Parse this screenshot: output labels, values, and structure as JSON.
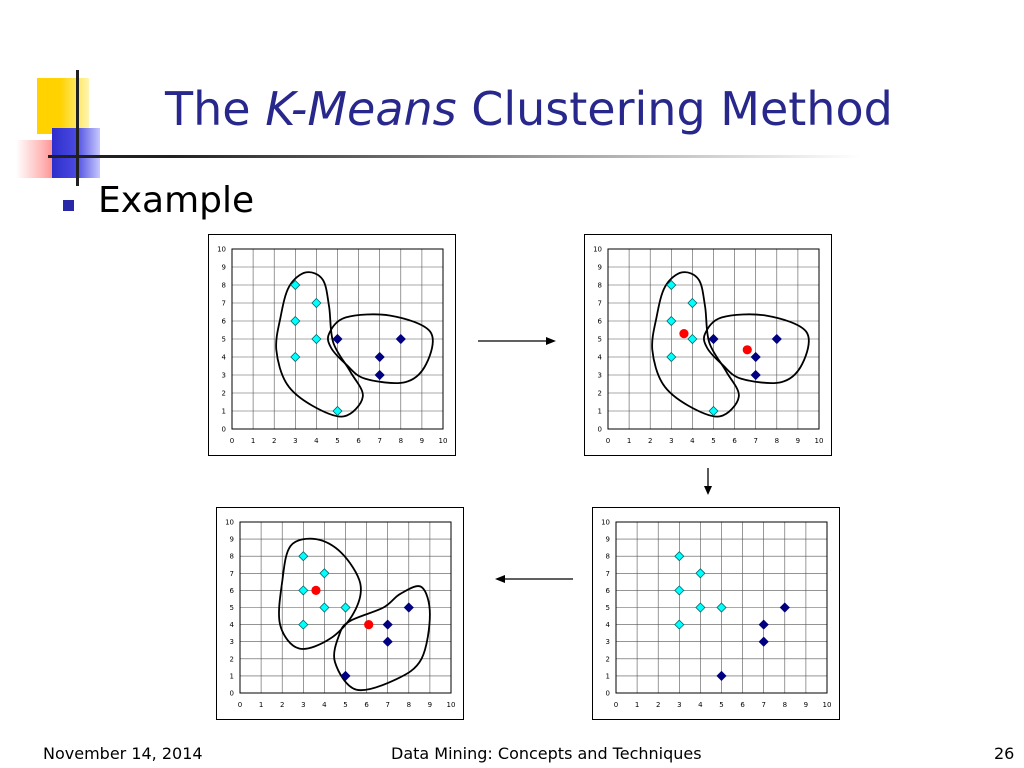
{
  "slide": {
    "title_pre": "The",
    "title_em": "K-Means",
    "title_post": "Clustering Method",
    "bullet": "Example",
    "footer_date": "November 14, 2014",
    "footer_title": "Data Mining: Concepts and Techniques",
    "footer_page": "26"
  },
  "colors": {
    "title": "#28288c",
    "bullet": "#2828a8",
    "cluster_a": "#00ffff",
    "cluster_b": "#000080",
    "centroid": "#ff0000"
  },
  "chart_data": [
    {
      "type": "scatter",
      "position": "top-left",
      "xlim": [
        0,
        10
      ],
      "ylim": [
        0,
        10
      ],
      "x_ticks": [
        "0",
        "1",
        "2",
        "3",
        "4",
        "5",
        "6",
        "7",
        "8",
        "9",
        "10"
      ],
      "y_ticks": [
        "0",
        "1",
        "2",
        "3",
        "4",
        "5",
        "6",
        "7",
        "8",
        "9",
        "10"
      ],
      "grid": true,
      "series": [
        {
          "marker": "cyan-diamond",
          "points": [
            [
              3,
              8
            ],
            [
              4,
              7
            ],
            [
              3,
              6
            ],
            [
              4,
              5
            ],
            [
              3,
              4
            ],
            [
              5,
              1
            ]
          ]
        },
        {
          "marker": "navy-diamond",
          "points": [
            [
              5,
              5
            ],
            [
              8,
              5
            ],
            [
              7,
              4
            ],
            [
              7,
              3
            ]
          ]
        }
      ],
      "centroids": [],
      "cluster_outlines": [
        [
          [
            2.3,
            6.2
          ],
          [
            2.7,
            7.9
          ],
          [
            3.5,
            8.7
          ],
          [
            4.3,
            8.3
          ],
          [
            4.6,
            6.8
          ],
          [
            4.8,
            4.8
          ],
          [
            5.6,
            3.2
          ],
          [
            6.2,
            1.8
          ],
          [
            5.3,
            0.7
          ],
          [
            3.8,
            1.3
          ],
          [
            2.6,
            2.5
          ],
          [
            2.1,
            4.4
          ]
        ],
        [
          [
            4.6,
            5.3
          ],
          [
            5.4,
            6.2
          ],
          [
            7.5,
            6.3
          ],
          [
            9.4,
            5.4
          ],
          [
            9.2,
            3.6
          ],
          [
            8.2,
            2.6
          ],
          [
            6.3,
            2.8
          ],
          [
            5.4,
            3.6
          ],
          [
            4.7,
            4.5
          ]
        ]
      ]
    },
    {
      "type": "scatter",
      "position": "top-right",
      "xlim": [
        0,
        10
      ],
      "ylim": [
        0,
        10
      ],
      "x_ticks": [
        "0",
        "1",
        "2",
        "3",
        "4",
        "5",
        "6",
        "7",
        "8",
        "9",
        "10"
      ],
      "y_ticks": [
        "0",
        "1",
        "2",
        "3",
        "4",
        "5",
        "6",
        "7",
        "8",
        "9",
        "10"
      ],
      "grid": true,
      "series": [
        {
          "marker": "cyan-diamond",
          "points": [
            [
              3,
              8
            ],
            [
              4,
              7
            ],
            [
              3,
              6
            ],
            [
              4,
              5
            ],
            [
              3,
              4
            ],
            [
              5,
              1
            ]
          ]
        },
        {
          "marker": "navy-diamond",
          "points": [
            [
              5,
              5
            ],
            [
              8,
              5
            ],
            [
              7,
              4
            ],
            [
              7,
              3
            ]
          ]
        }
      ],
      "centroids": [
        [
          3.6,
          5.3
        ],
        [
          6.6,
          4.4
        ]
      ],
      "cluster_outlines": [
        [
          [
            2.3,
            6.2
          ],
          [
            2.7,
            7.9
          ],
          [
            3.5,
            8.7
          ],
          [
            4.3,
            8.3
          ],
          [
            4.6,
            6.8
          ],
          [
            4.8,
            4.8
          ],
          [
            5.6,
            3.2
          ],
          [
            6.2,
            1.8
          ],
          [
            5.3,
            0.7
          ],
          [
            3.8,
            1.3
          ],
          [
            2.6,
            2.5
          ],
          [
            2.1,
            4.4
          ]
        ],
        [
          [
            4.6,
            5.3
          ],
          [
            5.4,
            6.2
          ],
          [
            7.5,
            6.3
          ],
          [
            9.4,
            5.4
          ],
          [
            9.2,
            3.6
          ],
          [
            8.2,
            2.6
          ],
          [
            6.3,
            2.8
          ],
          [
            5.4,
            3.6
          ],
          [
            4.7,
            4.5
          ]
        ]
      ]
    },
    {
      "type": "scatter",
      "position": "bottom-right",
      "xlim": [
        0,
        10
      ],
      "ylim": [
        0,
        10
      ],
      "x_ticks": [
        "0",
        "1",
        "2",
        "3",
        "4",
        "5",
        "6",
        "7",
        "8",
        "9",
        "10"
      ],
      "y_ticks": [
        "0",
        "1",
        "2",
        "3",
        "4",
        "5",
        "6",
        "7",
        "8",
        "9",
        "10"
      ],
      "grid": true,
      "series": [
        {
          "marker": "cyan-diamond",
          "points": [
            [
              3,
              8
            ],
            [
              4,
              7
            ],
            [
              3,
              6
            ],
            [
              4,
              5
            ],
            [
              5,
              5
            ],
            [
              3,
              4
            ]
          ]
        },
        {
          "marker": "navy-diamond",
          "points": [
            [
              8,
              5
            ],
            [
              7,
              4
            ],
            [
              7,
              3
            ],
            [
              5,
              1
            ]
          ]
        }
      ],
      "centroids": [],
      "cluster_outlines": []
    },
    {
      "type": "scatter",
      "position": "bottom-left",
      "xlim": [
        0,
        10
      ],
      "ylim": [
        0,
        10
      ],
      "x_ticks": [
        "0",
        "1",
        "2",
        "3",
        "4",
        "5",
        "6",
        "7",
        "8",
        "9",
        "10"
      ],
      "y_ticks": [
        "0",
        "1",
        "2",
        "3",
        "4",
        "5",
        "6",
        "7",
        "8",
        "9",
        "10"
      ],
      "grid": true,
      "series": [
        {
          "marker": "cyan-diamond",
          "points": [
            [
              3,
              8
            ],
            [
              4,
              7
            ],
            [
              3,
              6
            ],
            [
              4,
              5
            ],
            [
              5,
              5
            ],
            [
              3,
              4
            ]
          ]
        },
        {
          "marker": "navy-diamond",
          "points": [
            [
              8,
              5
            ],
            [
              7,
              4
            ],
            [
              7,
              3
            ],
            [
              5,
              1
            ]
          ]
        }
      ],
      "centroids": [
        [
          3.6,
          6.0
        ],
        [
          6.1,
          4.0
        ]
      ],
      "cluster_outlines": [
        [
          [
            2.0,
            6.5
          ],
          [
            2.4,
            8.6
          ],
          [
            3.6,
            9.0
          ],
          [
            4.8,
            8.2
          ],
          [
            5.7,
            6.4
          ],
          [
            5.4,
            4.7
          ],
          [
            4.3,
            3.2
          ],
          [
            2.8,
            2.6
          ],
          [
            1.9,
            4.0
          ]
        ],
        [
          [
            5.2,
            4.2
          ],
          [
            6.8,
            5.0
          ],
          [
            7.6,
            5.8
          ],
          [
            8.6,
            6.2
          ],
          [
            9.0,
            4.6
          ],
          [
            8.6,
            2.0
          ],
          [
            7.4,
            0.8
          ],
          [
            5.5,
            0.2
          ],
          [
            4.5,
            1.8
          ],
          [
            4.7,
            3.4
          ]
        ]
      ]
    }
  ]
}
